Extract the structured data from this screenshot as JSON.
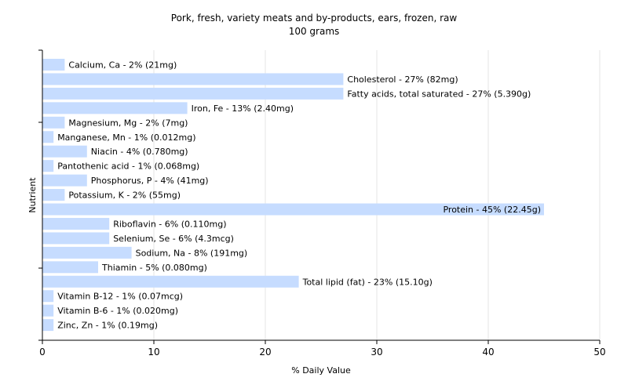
{
  "chart_data": {
    "type": "bar",
    "orientation": "horizontal",
    "title": "Pork, fresh, variety meats and by-products, ears, frozen, raw",
    "subtitle": "100 grams",
    "xlabel": "% Daily Value",
    "ylabel": "Nutrient",
    "xlim": [
      0,
      50
    ],
    "xticks": [
      "0",
      "10",
      "20",
      "30",
      "40",
      "50"
    ],
    "grid": true,
    "bar_color": "#c6dcff",
    "categories": [
      "Calcium, Ca",
      "Cholesterol",
      "Fatty acids, total saturated",
      "Iron, Fe",
      "Magnesium, Mg",
      "Manganese, Mn",
      "Niacin",
      "Pantothenic acid",
      "Phosphorus, P",
      "Potassium, K",
      "Protein",
      "Riboflavin",
      "Selenium, Se",
      "Sodium, Na",
      "Thiamin",
      "Total lipid (fat)",
      "Vitamin B-12",
      "Vitamin B-6",
      "Zinc, Zn"
    ],
    "values": [
      2,
      27,
      27,
      13,
      2,
      1,
      4,
      1,
      4,
      2,
      45,
      6,
      6,
      8,
      5,
      23,
      1,
      1,
      1
    ],
    "labels": [
      "Calcium, Ca - 2% (21mg)",
      "Cholesterol - 27% (82mg)",
      "Fatty acids, total saturated - 27% (5.390g)",
      "Iron, Fe - 13% (2.40mg)",
      "Magnesium, Mg - 2% (7mg)",
      "Manganese, Mn - 1% (0.012mg)",
      "Niacin - 4% (0.780mg)",
      "Pantothenic acid - 1% (0.068mg)",
      "Phosphorus, P - 4% (41mg)",
      "Potassium, K - 2% (55mg)",
      "Protein - 45% (22.45g)",
      "Riboflavin - 6% (0.110mg)",
      "Selenium, Se - 6% (4.3mcg)",
      "Sodium, Na - 8% (191mg)",
      "Thiamin - 5% (0.080mg)",
      "Total lipid (fat) - 23% (15.10g)",
      "Vitamin B-12 - 1% (0.07mcg)",
      "Vitamin B-6 - 1% (0.020mg)",
      "Zinc, Zn - 1% (0.19mg)"
    ]
  }
}
